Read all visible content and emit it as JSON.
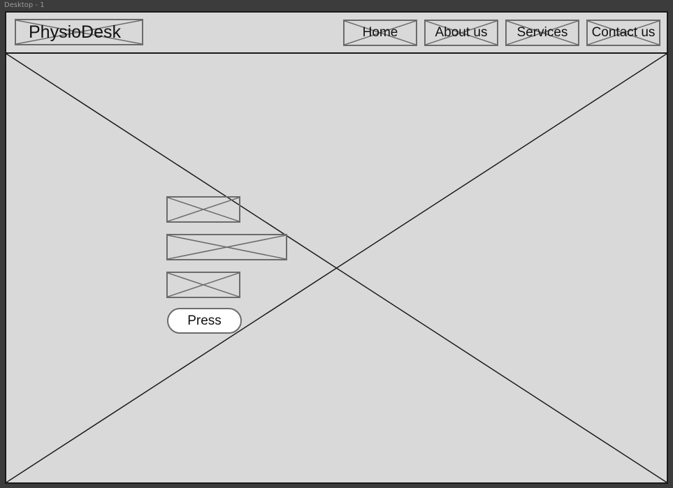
{
  "canvas": {
    "frame_label": "Desktop - 1"
  },
  "header": {
    "logo_text": "PhysioDesk",
    "nav": [
      {
        "label": "Home"
      },
      {
        "label": "About us"
      },
      {
        "label": "Services"
      },
      {
        "label": "Contact us"
      }
    ]
  },
  "hero": {
    "button_label": "Press"
  },
  "colors": {
    "frame_background": "#d9d9d9",
    "canvas_background": "#3c3c3c",
    "placeholder_stroke": "#6b6b6b",
    "outline": "#1a1a1a",
    "button_fill": "#ffffff"
  },
  "icons": {
    "placeholder": "image-placeholder-icon"
  }
}
